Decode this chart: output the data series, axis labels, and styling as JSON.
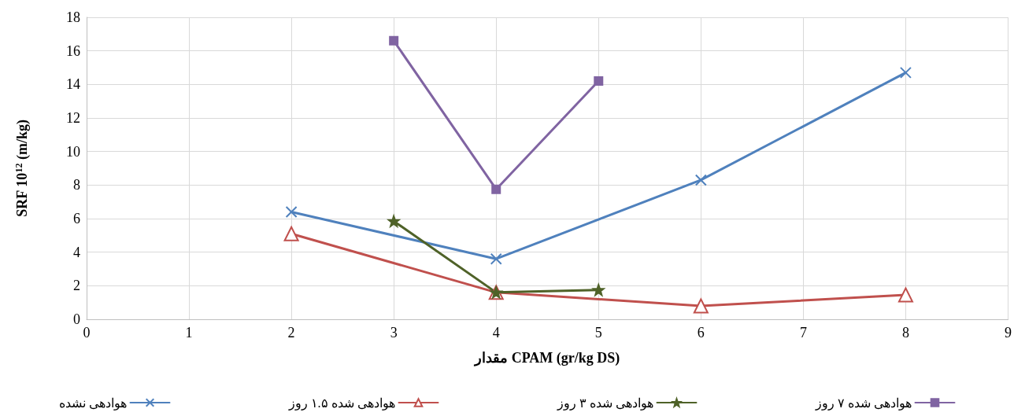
{
  "chart_data": {
    "type": "line",
    "xlabel": "مقدار CPAM (gr/kg DS)",
    "ylabel": "SRF 10$^{12}$ (m/kg)",
    "xlim": [
      0,
      9
    ],
    "xticks": [
      0,
      1,
      2,
      3,
      4,
      5,
      6,
      7,
      8,
      9
    ],
    "ylim": [
      0,
      18
    ],
    "yticks": [
      0,
      2,
      4,
      6,
      8,
      10,
      12,
      14,
      16,
      18
    ],
    "grid": true,
    "legend": "bottom",
    "line_style": "solid",
    "series": [
      {
        "name": "هوادهی نشده",
        "color": "#4f81bd",
        "marker": "cross",
        "x": [
          2,
          4,
          6,
          8
        ],
        "values": [
          6.4,
          3.6,
          8.3,
          14.7
        ]
      },
      {
        "name": "هوادهی شده ۱.۵ روز",
        "color": "#c0504d",
        "marker": "triangle",
        "x": [
          2,
          4,
          6,
          8
        ],
        "values": [
          5.1,
          1.6,
          0.8,
          1.45
        ]
      },
      {
        "name": "هوادهی شده ۳ روز",
        "color": "#4f6228",
        "marker": "star",
        "x": [
          3,
          4,
          5
        ],
        "values": [
          5.85,
          1.6,
          1.75
        ]
      },
      {
        "name": "هوادهی شده ۷ روز",
        "color": "#8064a2",
        "marker": "square",
        "x": [
          3,
          4,
          5
        ],
        "values": [
          16.6,
          7.75,
          14.2
        ]
      }
    ]
  }
}
